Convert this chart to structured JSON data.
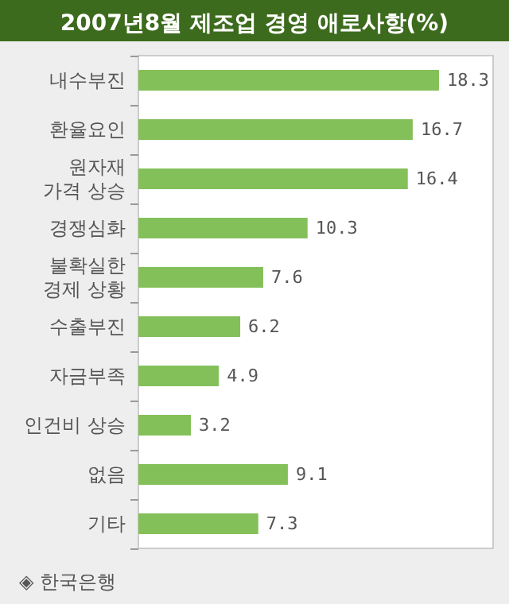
{
  "chart_data": {
    "type": "bar",
    "orientation": "horizontal",
    "title": "2007년8월 제조업 경영 애로사항(%)",
    "categories": [
      "내수부진",
      "환율요인",
      "원자재 가격 상승",
      "경쟁심화",
      "불확실한 경제 상황",
      "수출부진",
      "자금부족",
      "인건비 상승",
      "없음",
      "기타"
    ],
    "values": [
      18.3,
      16.7,
      16.4,
      10.3,
      7.6,
      6.2,
      4.9,
      3.2,
      9.1,
      7.3
    ],
    "colors": [
      "#84c05a",
      "#84c05a",
      "#84c05a",
      "#84c05a",
      "#84c05a",
      "#84c05a",
      "#84c05a",
      "#84c05a",
      "#84c05a",
      "#84c05a"
    ],
    "data_labels": true,
    "annotations": [
      "◈ 한국은행"
    ]
  }
}
